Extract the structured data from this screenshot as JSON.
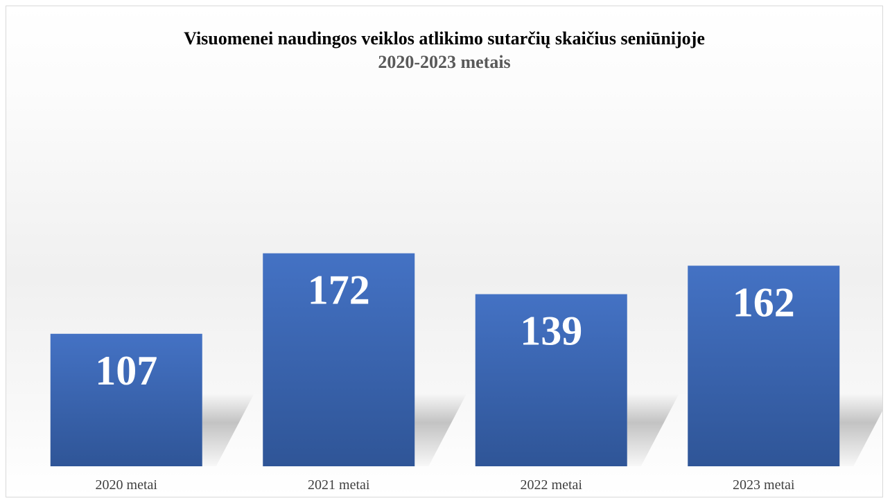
{
  "chart_data": {
    "type": "bar",
    "title": "Visuomenei naudingos veiklos atlikimo sutarčių skaičius seniūnijoje",
    "subtitle": "2020-2023 metais",
    "categories": [
      "2020 metai",
      "2021 metai",
      "2022 metai",
      "2023 metai"
    ],
    "values": [
      107,
      172,
      139,
      162
    ],
    "xlabel": "",
    "ylabel": "",
    "ylim": [
      0,
      200
    ],
    "grid": false,
    "legend": "none",
    "data_labels": "inside-top",
    "colors": {
      "bar_top": "#4472c4",
      "bar_bottom": "#2f5597",
      "label": "#ffffff"
    }
  }
}
